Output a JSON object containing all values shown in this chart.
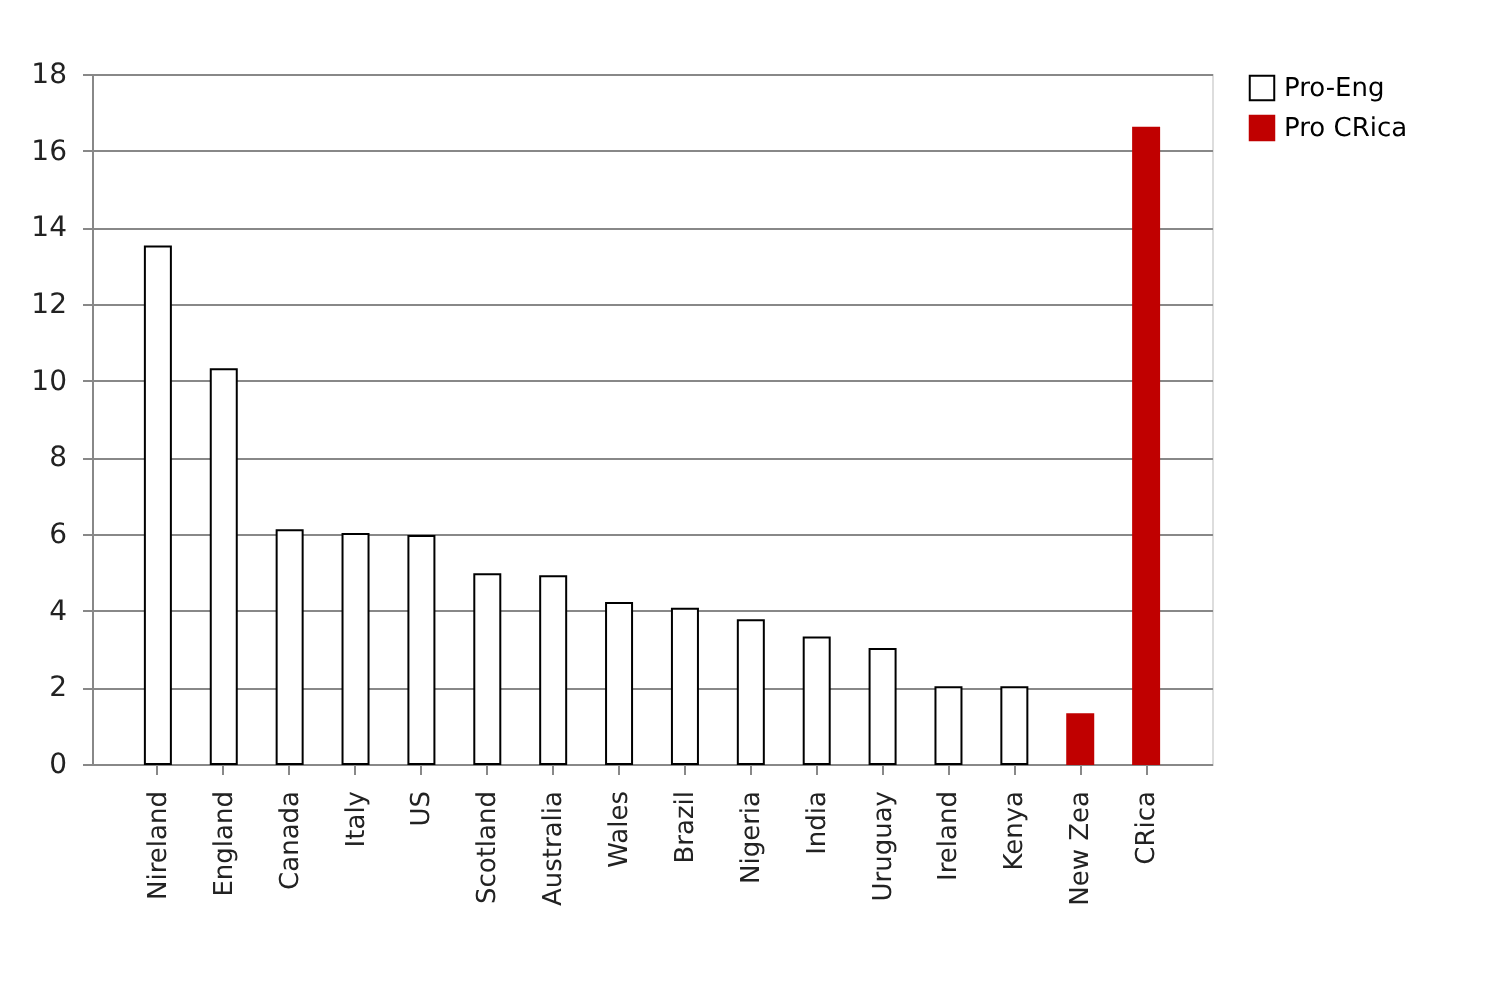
{
  "chart_data": {
    "type": "bar",
    "categories": [
      "Nireland",
      "England",
      "Canada",
      "Italy",
      "US",
      "Scotland",
      "Australia",
      "Wales",
      "Brazil",
      "Nigeria",
      "India",
      "Uruguay",
      "Ireland",
      "Kenya",
      "New Zea",
      "CRica"
    ],
    "series": [
      {
        "name": "Pro-Eng",
        "color": "#ffffff",
        "values": [
          13.5,
          10.3,
          6.1,
          6.0,
          5.95,
          4.95,
          4.9,
          4.2,
          4.05,
          3.75,
          3.3,
          3.0,
          2.0,
          2.0,
          null,
          null
        ]
      },
      {
        "name": "Pro CRica",
        "color": "#c00000",
        "values": [
          null,
          null,
          null,
          null,
          null,
          null,
          null,
          null,
          null,
          null,
          null,
          null,
          null,
          null,
          1.3,
          16.6
        ]
      }
    ],
    "ylim": [
      0,
      18
    ],
    "yticks": [
      0,
      2,
      4,
      6,
      8,
      10,
      12,
      14,
      16,
      18
    ],
    "grid": "y",
    "legend": "right"
  }
}
